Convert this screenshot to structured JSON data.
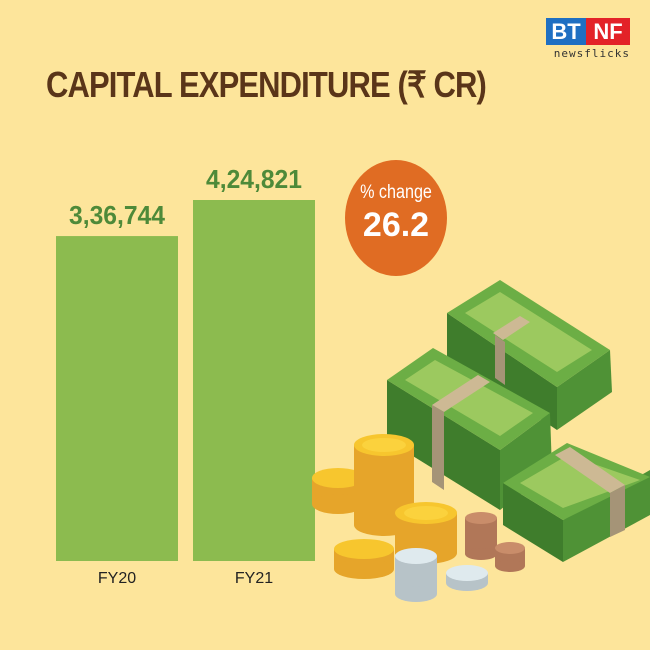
{
  "logo": {
    "left": "BT",
    "right": "NF",
    "sub": "newsflicks"
  },
  "chart_data": {
    "type": "bar",
    "title": "CAPITAL EXPENDITURE (₹ CR)",
    "categories": [
      "FY20",
      "FY21"
    ],
    "values": [
      336744,
      424821
    ],
    "value_labels": [
      "3,36,744",
      "4,24,821"
    ],
    "xlabel": "",
    "ylabel": "",
    "grid": false,
    "colors": {
      "bar": "#8cbb4f",
      "value_text": "#4e8a39",
      "title": "#5a3519"
    }
  },
  "callout": {
    "label": "% change",
    "value": "26.2",
    "color": "#e06c23"
  }
}
